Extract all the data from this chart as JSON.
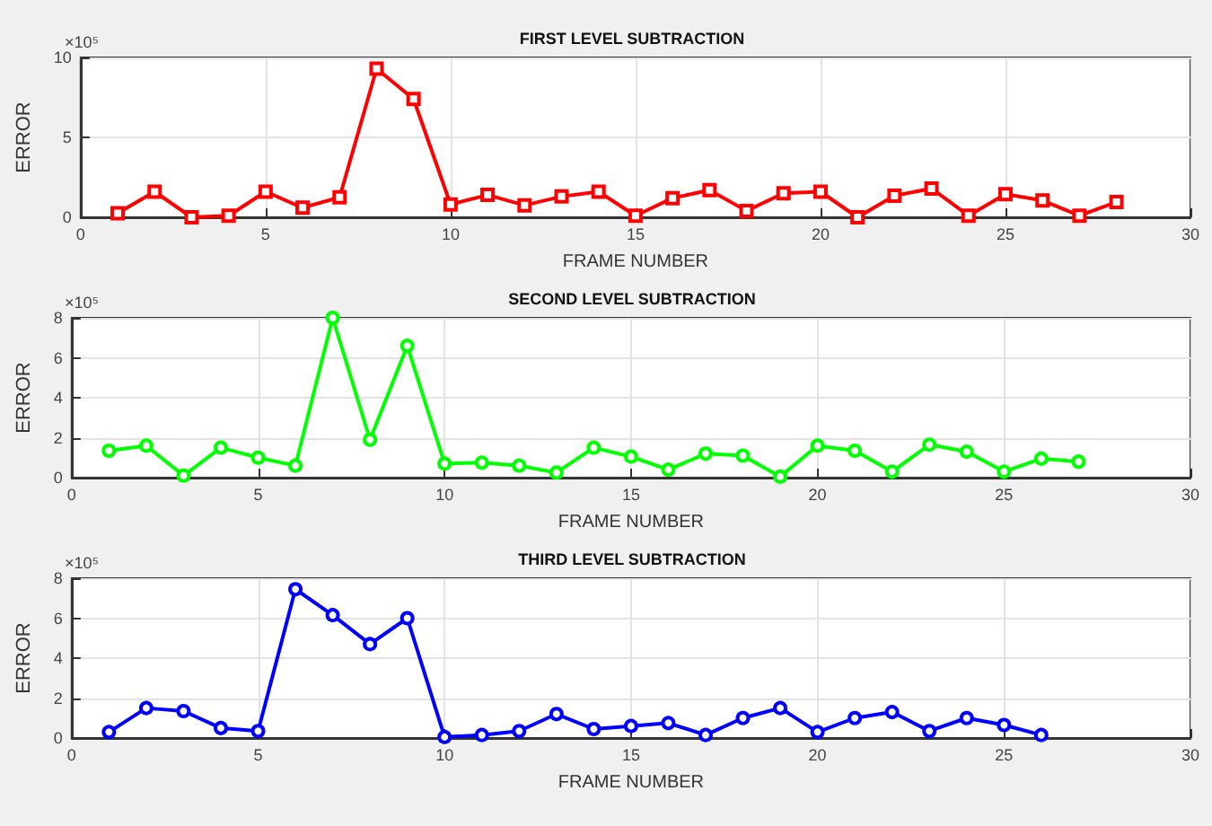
{
  "chart_data": [
    {
      "type": "line",
      "title": "FIRST LEVEL SUBTRACTION",
      "xlabel": "FRAME NUMBER",
      "ylabel": "ERROR",
      "annotations": [
        "×10⁵"
      ],
      "x": [
        1,
        2,
        3,
        4,
        5,
        6,
        7,
        8,
        9,
        10,
        11,
        12,
        13,
        14,
        15,
        16,
        17,
        18,
        19,
        20,
        21,
        22,
        23,
        24,
        25,
        26,
        27,
        28
      ],
      "series": [
        {
          "color": "#ff0000",
          "values": [
            0.25,
            1.6,
            0,
            0.1,
            1.6,
            0.6,
            1.25,
            9.3,
            7.4,
            0.8,
            1.4,
            0.75,
            1.3,
            1.6,
            0.1,
            1.2,
            1.7,
            0.4,
            1.5,
            1.6,
            0,
            1.35,
            1.8,
            0.1,
            1.45,
            1.05,
            0.1,
            0.95
          ]
        }
      ],
      "xlim": [
        0,
        30
      ],
      "xticks": [
        0,
        5,
        10,
        15,
        20,
        25,
        30
      ],
      "ylim": [
        0,
        10
      ],
      "yticks": [
        0,
        5,
        10
      ],
      "grid": true,
      "marker": "square",
      "line_style": "solid"
    },
    {
      "type": "line",
      "title": "SECOND LEVEL SUBTRACTION",
      "xlabel": "FRAME NUMBER",
      "ylabel": "ERROR",
      "annotations": [
        "×10⁵"
      ],
      "x": [
        1,
        2,
        3,
        4,
        5,
        6,
        7,
        8,
        9,
        10,
        11,
        12,
        13,
        14,
        15,
        16,
        17,
        18,
        19,
        20,
        21,
        22,
        23,
        24,
        25,
        26,
        27
      ],
      "series": [
        {
          "color": "#00ff00",
          "values": [
            1.35,
            1.6,
            0.1,
            1.5,
            1.0,
            0.6,
            8.0,
            1.9,
            6.6,
            0.7,
            0.75,
            0.6,
            0.25,
            1.5,
            1.05,
            0.4,
            1.2,
            1.1,
            0.05,
            1.6,
            1.35,
            0.3,
            1.65,
            1.3,
            0.3,
            0.95,
            0.8
          ]
        }
      ],
      "xlim": [
        0,
        30
      ],
      "xticks": [
        0,
        5,
        10,
        15,
        20,
        25,
        30
      ],
      "ylim": [
        0,
        8
      ],
      "yticks": [
        0,
        2,
        4,
        6,
        8
      ],
      "grid": true,
      "marker": "circle",
      "line_style": "solid"
    },
    {
      "type": "line",
      "title": "THIRD LEVEL SUBTRACTION",
      "xlabel": "FRAME NUMBER",
      "ylabel": "ERROR",
      "annotations": [
        "×10⁵"
      ],
      "x": [
        1,
        2,
        3,
        4,
        5,
        6,
        7,
        8,
        9,
        10,
        11,
        12,
        13,
        14,
        15,
        16,
        17,
        18,
        19,
        20,
        21,
        22,
        23,
        24,
        25,
        26
      ],
      "series": [
        {
          "color": "#0000ff",
          "values": [
            0.3,
            1.5,
            1.35,
            0.5,
            0.35,
            7.45,
            6.15,
            4.7,
            6.0,
            0.05,
            0.15,
            0.35,
            1.2,
            0.45,
            0.6,
            0.75,
            0.15,
            1.0,
            1.5,
            0.3,
            1.0,
            1.3,
            0.35,
            1.0,
            0.65,
            0.15
          ]
        }
      ],
      "xlim": [
        0,
        30
      ],
      "xticks": [
        0,
        5,
        10,
        15,
        20,
        25,
        30
      ],
      "ylim": [
        0,
        8
      ],
      "yticks": [
        0,
        2,
        4,
        6,
        8
      ],
      "grid": true,
      "marker": "circle",
      "line_style": "solid"
    }
  ]
}
